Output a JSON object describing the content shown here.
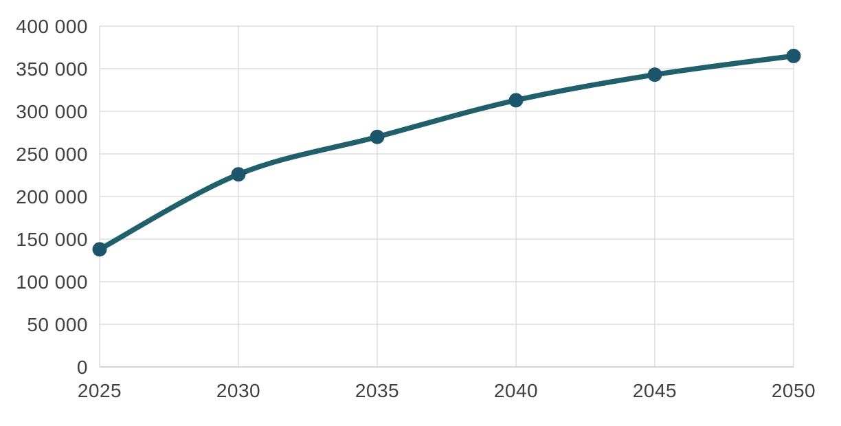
{
  "chart_data": {
    "type": "line",
    "title": "",
    "xlabel": "",
    "ylabel": "",
    "x": [
      2025,
      2030,
      2035,
      2040,
      2045,
      2050
    ],
    "xtick_labels": [
      "2025",
      "2030",
      "2035",
      "2040",
      "2045",
      "2050"
    ],
    "series": [
      {
        "name": "series-1",
        "values": [
          138000,
          226000,
          270000,
          313000,
          343000,
          365000
        ]
      }
    ],
    "ylim": [
      0,
      400000
    ],
    "ytick_step": 50000,
    "ytick_values": [
      0,
      50000,
      100000,
      150000,
      200000,
      250000,
      300000,
      350000,
      400000
    ],
    "ytick_labels": [
      "0",
      "50 000",
      "100 000",
      "150 000",
      "200 000",
      "250 000",
      "300 000",
      "350 000",
      "400 000"
    ],
    "grid": "on",
    "legend": "none",
    "smoothed_line": true,
    "marker": "circle"
  },
  "style": {
    "line_color": "#20606b",
    "marker_color": "#1d566b",
    "gridline_color": "#d8d8d8",
    "axis_line_color": "#c6c6c6",
    "label_color": "#3f3f46",
    "background_color": "#ffffff"
  }
}
